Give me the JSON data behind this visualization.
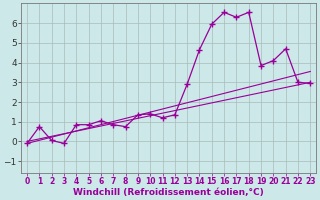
{
  "xlabel": "Windchill (Refroidissement éolien,°C)",
  "background_color": "#cde8e8",
  "line_color": "#990099",
  "grid_color": "#aabbbb",
  "xlim": [
    -0.5,
    23.5
  ],
  "ylim": [
    -1.6,
    7.0
  ],
  "xticks": [
    0,
    1,
    2,
    3,
    4,
    5,
    6,
    7,
    8,
    9,
    10,
    11,
    12,
    13,
    14,
    15,
    16,
    17,
    18,
    19,
    20,
    21,
    22,
    23
  ],
  "yticks": [
    -1,
    0,
    1,
    2,
    3,
    4,
    5,
    6
  ],
  "line1_x": [
    0,
    1,
    2,
    3,
    4,
    5,
    6,
    7,
    8,
    9,
    10,
    11,
    12,
    13,
    14,
    15,
    16,
    17,
    18,
    19,
    20,
    21,
    22,
    23
  ],
  "line1_y": [
    -0.1,
    0.75,
    0.05,
    -0.1,
    0.85,
    0.85,
    1.05,
    0.85,
    0.75,
    1.35,
    1.4,
    1.2,
    1.35,
    2.9,
    4.65,
    5.95,
    6.55,
    6.3,
    6.55,
    3.85,
    4.1,
    4.7,
    3.0,
    2.95
  ],
  "line2_x": [
    0,
    23
  ],
  "line2_y": [
    0.0,
    3.0
  ],
  "line3_x": [
    0,
    23
  ],
  "line3_y": [
    -0.1,
    3.55
  ],
  "xlabel_fontsize": 6.5,
  "xtick_fontsize": 5.5,
  "ytick_fontsize": 6.5
}
